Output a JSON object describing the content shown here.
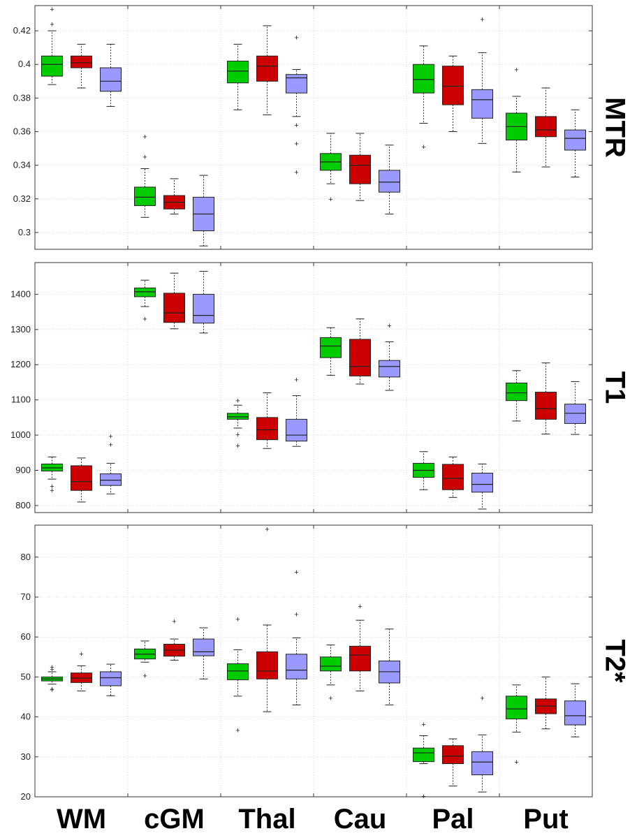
{
  "chart_data": {
    "type": "box",
    "categories": [
      "WM",
      "cGM",
      "Thal",
      "Cau",
      "Pal",
      "Put"
    ],
    "group_colors": [
      "#00cc00",
      "#cc0000",
      "#9999ff"
    ],
    "grid": true,
    "panels": [
      {
        "label": "MTR",
        "ylim": [
          0.29,
          0.435
        ],
        "yticks": [
          0.3,
          0.32,
          0.34,
          0.36,
          0.38,
          0.4,
          0.42
        ],
        "tick_labels": [
          "0.3",
          "0.32",
          "0.34",
          "0.36",
          "0.38",
          "0.4",
          "0.42"
        ],
        "boxes": [
          [
            {
              "min": 0.388,
              "q1": 0.393,
              "median": 0.4,
              "q3": 0.405,
              "max": 0.42,
              "outliers": [
                0.424,
                0.433
              ]
            },
            {
              "min": 0.386,
              "q1": 0.398,
              "median": 0.401,
              "q3": 0.405,
              "max": 0.412,
              "outliers": []
            },
            {
              "min": 0.375,
              "q1": 0.384,
              "median": 0.39,
              "q3": 0.398,
              "max": 0.412,
              "outliers": []
            }
          ],
          [
            {
              "min": 0.309,
              "q1": 0.316,
              "median": 0.321,
              "q3": 0.327,
              "max": 0.338,
              "outliers": [
                0.345,
                0.357
              ]
            },
            {
              "min": 0.311,
              "q1": 0.314,
              "median": 0.318,
              "q3": 0.322,
              "max": 0.332,
              "outliers": []
            },
            {
              "min": 0.292,
              "q1": 0.301,
              "median": 0.311,
              "q3": 0.321,
              "max": 0.334,
              "outliers": []
            }
          ],
          [
            {
              "min": 0.373,
              "q1": 0.389,
              "median": 0.396,
              "q3": 0.402,
              "max": 0.412,
              "outliers": []
            },
            {
              "min": 0.37,
              "q1": 0.39,
              "median": 0.399,
              "q3": 0.405,
              "max": 0.423,
              "outliers": []
            },
            {
              "min": 0.369,
              "q1": 0.383,
              "median": 0.392,
              "q3": 0.394,
              "max": 0.397,
              "outliers": [
                0.416,
                0.364,
                0.353,
                0.336
              ]
            }
          ],
          [
            {
              "min": 0.329,
              "q1": 0.337,
              "median": 0.342,
              "q3": 0.347,
              "max": 0.359,
              "outliers": [
                0.32
              ]
            },
            {
              "min": 0.319,
              "q1": 0.329,
              "median": 0.34,
              "q3": 0.346,
              "max": 0.359,
              "outliers": []
            },
            {
              "min": 0.311,
              "q1": 0.324,
              "median": 0.33,
              "q3": 0.337,
              "max": 0.352,
              "outliers": []
            }
          ],
          [
            {
              "min": 0.365,
              "q1": 0.383,
              "median": 0.391,
              "q3": 0.4,
              "max": 0.411,
              "outliers": [
                0.351
              ]
            },
            {
              "min": 0.36,
              "q1": 0.376,
              "median": 0.387,
              "q3": 0.399,
              "max": 0.405,
              "outliers": []
            },
            {
              "min": 0.353,
              "q1": 0.368,
              "median": 0.379,
              "q3": 0.385,
              "max": 0.407,
              "outliers": [
                0.427
              ]
            }
          ],
          [
            {
              "min": 0.336,
              "q1": 0.355,
              "median": 0.363,
              "q3": 0.371,
              "max": 0.381,
              "outliers": [
                0.397
              ]
            },
            {
              "min": 0.339,
              "q1": 0.357,
              "median": 0.361,
              "q3": 0.369,
              "max": 0.386,
              "outliers": []
            },
            {
              "min": 0.333,
              "q1": 0.349,
              "median": 0.356,
              "q3": 0.361,
              "max": 0.373,
              "outliers": []
            }
          ]
        ]
      },
      {
        "label": "T1",
        "ylim": [
          780,
          1490
        ],
        "yticks": [
          800,
          900,
          1000,
          1100,
          1200,
          1300,
          1400
        ],
        "tick_labels": [
          "800",
          "900",
          "1000",
          "1100",
          "1200",
          "1300",
          "1400"
        ],
        "boxes": [
          [
            {
              "min": 875,
              "q1": 898,
              "median": 907,
              "q3": 918,
              "max": 938,
              "outliers": [
                855,
                843
              ]
            },
            {
              "min": 810,
              "q1": 843,
              "median": 868,
              "q3": 913,
              "max": 935,
              "outliers": []
            },
            {
              "min": 833,
              "q1": 857,
              "median": 872,
              "q3": 890,
              "max": 920,
              "outliers": [
                997,
                973
              ]
            }
          ],
          [
            {
              "min": 1365,
              "q1": 1393,
              "median": 1407,
              "q3": 1418,
              "max": 1440,
              "outliers": [
                1330
              ]
            },
            {
              "min": 1302,
              "q1": 1320,
              "median": 1347,
              "q3": 1403,
              "max": 1460,
              "outliers": []
            },
            {
              "min": 1290,
              "q1": 1318,
              "median": 1340,
              "q3": 1400,
              "max": 1465,
              "outliers": []
            }
          ],
          [
            {
              "min": 1020,
              "q1": 1045,
              "median": 1052,
              "q3": 1062,
              "max": 1085,
              "outliers": [
                1098,
                1002,
                970
              ]
            },
            {
              "min": 962,
              "q1": 987,
              "median": 1015,
              "q3": 1050,
              "max": 1120,
              "outliers": []
            },
            {
              "min": 968,
              "q1": 983,
              "median": 1000,
              "q3": 1045,
              "max": 1112,
              "outliers": [
                1158
              ]
            }
          ],
          [
            {
              "min": 1170,
              "q1": 1220,
              "median": 1253,
              "q3": 1277,
              "max": 1305,
              "outliers": []
            },
            {
              "min": 1145,
              "q1": 1168,
              "median": 1195,
              "q3": 1272,
              "max": 1330,
              "outliers": []
            },
            {
              "min": 1127,
              "q1": 1165,
              "median": 1195,
              "q3": 1212,
              "max": 1265,
              "outliers": [
                1312
              ]
            }
          ],
          [
            {
              "min": 845,
              "q1": 880,
              "median": 900,
              "q3": 920,
              "max": 953,
              "outliers": []
            },
            {
              "min": 823,
              "q1": 845,
              "median": 877,
              "q3": 917,
              "max": 938,
              "outliers": []
            },
            {
              "min": 790,
              "q1": 838,
              "median": 860,
              "q3": 892,
              "max": 918,
              "outliers": []
            }
          ],
          [
            {
              "min": 1040,
              "q1": 1098,
              "median": 1120,
              "q3": 1148,
              "max": 1183,
              "outliers": []
            },
            {
              "min": 1003,
              "q1": 1045,
              "median": 1075,
              "q3": 1122,
              "max": 1205,
              "outliers": []
            },
            {
              "min": 1002,
              "q1": 1033,
              "median": 1062,
              "q3": 1088,
              "max": 1152,
              "outliers": []
            }
          ]
        ]
      },
      {
        "label": "T2*",
        "ylim": [
          20,
          88
        ],
        "yticks": [
          20,
          30,
          40,
          50,
          60,
          70,
          80
        ],
        "tick_labels": [
          "20",
          "30",
          "40",
          "50",
          "60",
          "70",
          "80"
        ],
        "boxes": [
          [
            {
              "min": 48.2,
              "q1": 49.0,
              "median": 49.5,
              "q3": 50.0,
              "max": 51.3,
              "outliers": [
                52.5,
                52.0,
                47.0,
                46.8
              ]
            },
            {
              "min": 46.5,
              "q1": 48.6,
              "median": 49.7,
              "q3": 51.0,
              "max": 52.8,
              "outliers": [
                55.8
              ]
            },
            {
              "min": 45.3,
              "q1": 47.8,
              "median": 49.8,
              "q3": 51.3,
              "max": 53.2,
              "outliers": []
            }
          ],
          [
            {
              "min": 53.7,
              "q1": 54.5,
              "median": 55.7,
              "q3": 57.0,
              "max": 59.0,
              "outliers": [
                50.3
              ]
            },
            {
              "min": 54.2,
              "q1": 55.2,
              "median": 56.7,
              "q3": 58.2,
              "max": 59.5,
              "outliers": [
                64.0
              ]
            },
            {
              "min": 49.5,
              "q1": 55.3,
              "median": 56.3,
              "q3": 59.5,
              "max": 62.3,
              "outliers": []
            }
          ],
          [
            {
              "min": 45.2,
              "q1": 49.3,
              "median": 51.5,
              "q3": 53.3,
              "max": 56.8,
              "outliers": [
                64.5,
                36.7
              ]
            },
            {
              "min": 41.3,
              "q1": 49.5,
              "median": 51.5,
              "q3": 56.3,
              "max": 63.0,
              "outliers": [
                87.0
              ]
            },
            {
              "min": 43.0,
              "q1": 49.5,
              "median": 51.7,
              "q3": 55.7,
              "max": 59.8,
              "outliers": [
                76.3,
                65.7
              ]
            }
          ],
          [
            {
              "min": 48.0,
              "q1": 51.5,
              "median": 52.7,
              "q3": 55.0,
              "max": 58.0,
              "outliers": [
                44.7
              ]
            },
            {
              "min": 46.5,
              "q1": 51.5,
              "median": 55.5,
              "q3": 57.7,
              "max": 64.2,
              "outliers": [
                67.7
              ]
            },
            {
              "min": 43.0,
              "q1": 48.5,
              "median": 51.3,
              "q3": 54.0,
              "max": 62.0,
              "outliers": []
            }
          ],
          [
            {
              "min": 28.3,
              "q1": 28.8,
              "median": 31.0,
              "q3": 32.2,
              "max": 35.3,
              "outliers": [
                38.2,
                20.2
              ]
            },
            {
              "min": 22.7,
              "q1": 28.3,
              "median": 30.2,
              "q3": 32.8,
              "max": 34.5,
              "outliers": []
            },
            {
              "min": 21.2,
              "q1": 25.5,
              "median": 28.7,
              "q3": 31.3,
              "max": 35.5,
              "outliers": [
                44.7
              ]
            }
          ],
          [
            {
              "min": 36.2,
              "q1": 39.5,
              "median": 42.0,
              "q3": 45.2,
              "max": 48.0,
              "outliers": [
                28.7
              ]
            },
            {
              "min": 37.0,
              "q1": 40.8,
              "median": 42.7,
              "q3": 44.5,
              "max": 50.0,
              "outliers": []
            },
            {
              "min": 35.0,
              "q1": 38.0,
              "median": 40.3,
              "q3": 44.0,
              "max": 48.3,
              "outliers": []
            }
          ]
        ]
      }
    ]
  }
}
